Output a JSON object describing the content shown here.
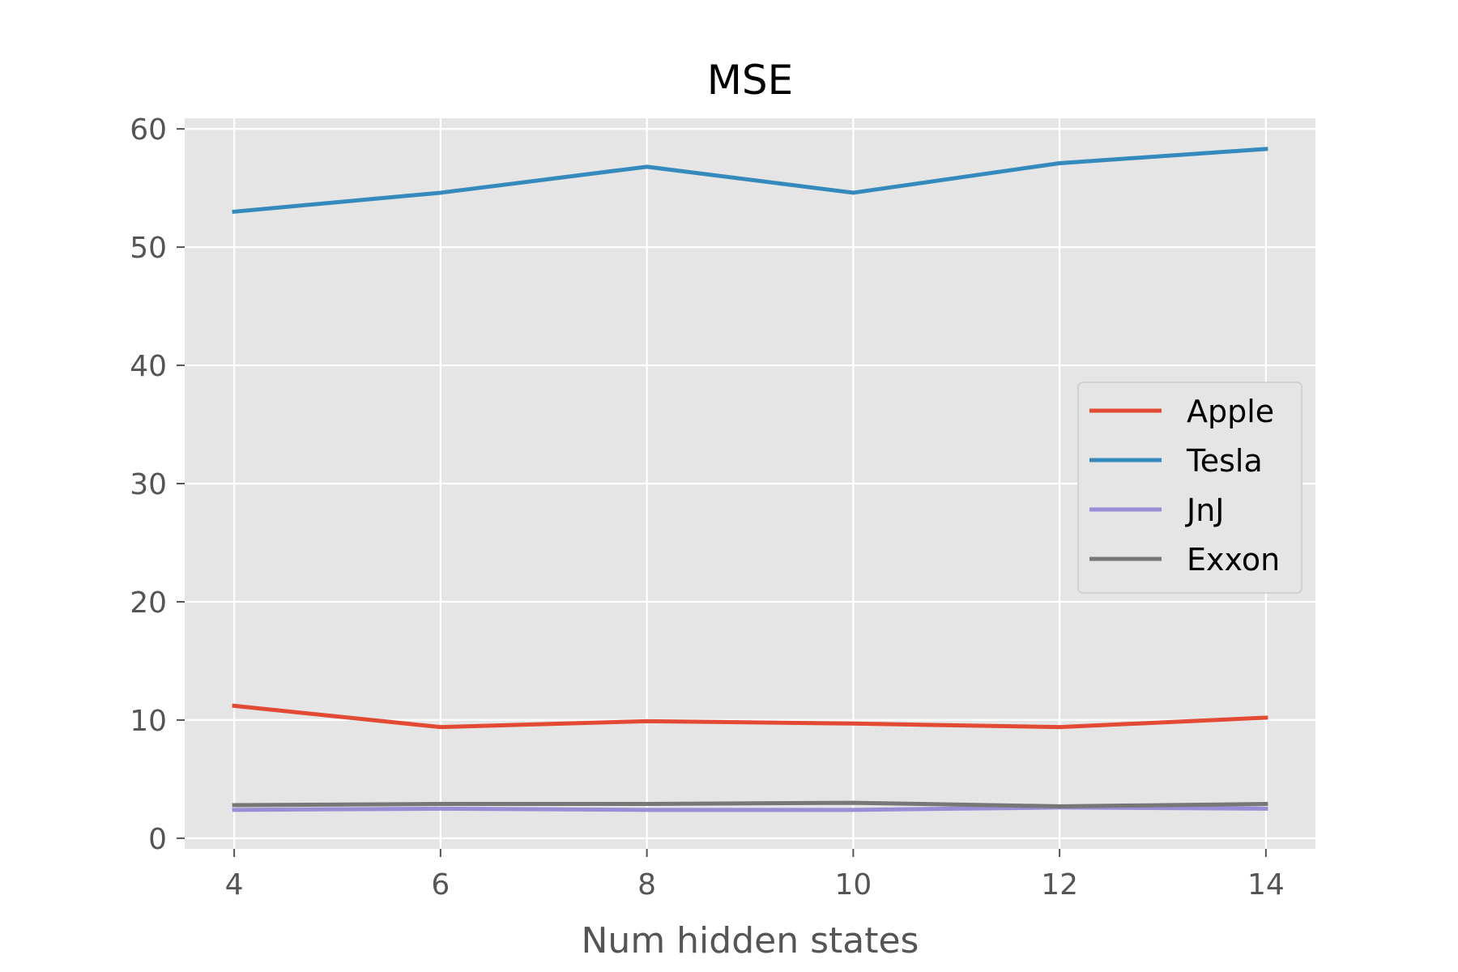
{
  "chart_data": {
    "type": "line",
    "title": "MSE",
    "xlabel": "Num hidden states",
    "ylabel": "",
    "x": [
      4,
      6,
      8,
      10,
      12,
      14
    ],
    "xlim": [
      3.52,
      14.48
    ],
    "ylim": [
      -0.9,
      60.9
    ],
    "xticks": [
      4,
      6,
      8,
      10,
      12,
      14
    ],
    "yticks": [
      0,
      10,
      20,
      30,
      40,
      50,
      60
    ],
    "grid": true,
    "legend_position": "center-right",
    "background": "#e5e5e5",
    "series": [
      {
        "name": "Apple",
        "color": "#e24a33",
        "values": [
          11.2,
          9.4,
          9.9,
          9.7,
          9.4,
          10.2
        ]
      },
      {
        "name": "Tesla",
        "color": "#348abd",
        "values": [
          53.0,
          54.6,
          56.8,
          54.6,
          57.1,
          58.3
        ]
      },
      {
        "name": "JnJ",
        "color": "#988ed5",
        "values": [
          2.4,
          2.5,
          2.4,
          2.4,
          2.6,
          2.5
        ]
      },
      {
        "name": "Exxon",
        "color": "#777777",
        "values": [
          2.8,
          2.9,
          2.9,
          3.0,
          2.7,
          2.9
        ]
      }
    ]
  }
}
